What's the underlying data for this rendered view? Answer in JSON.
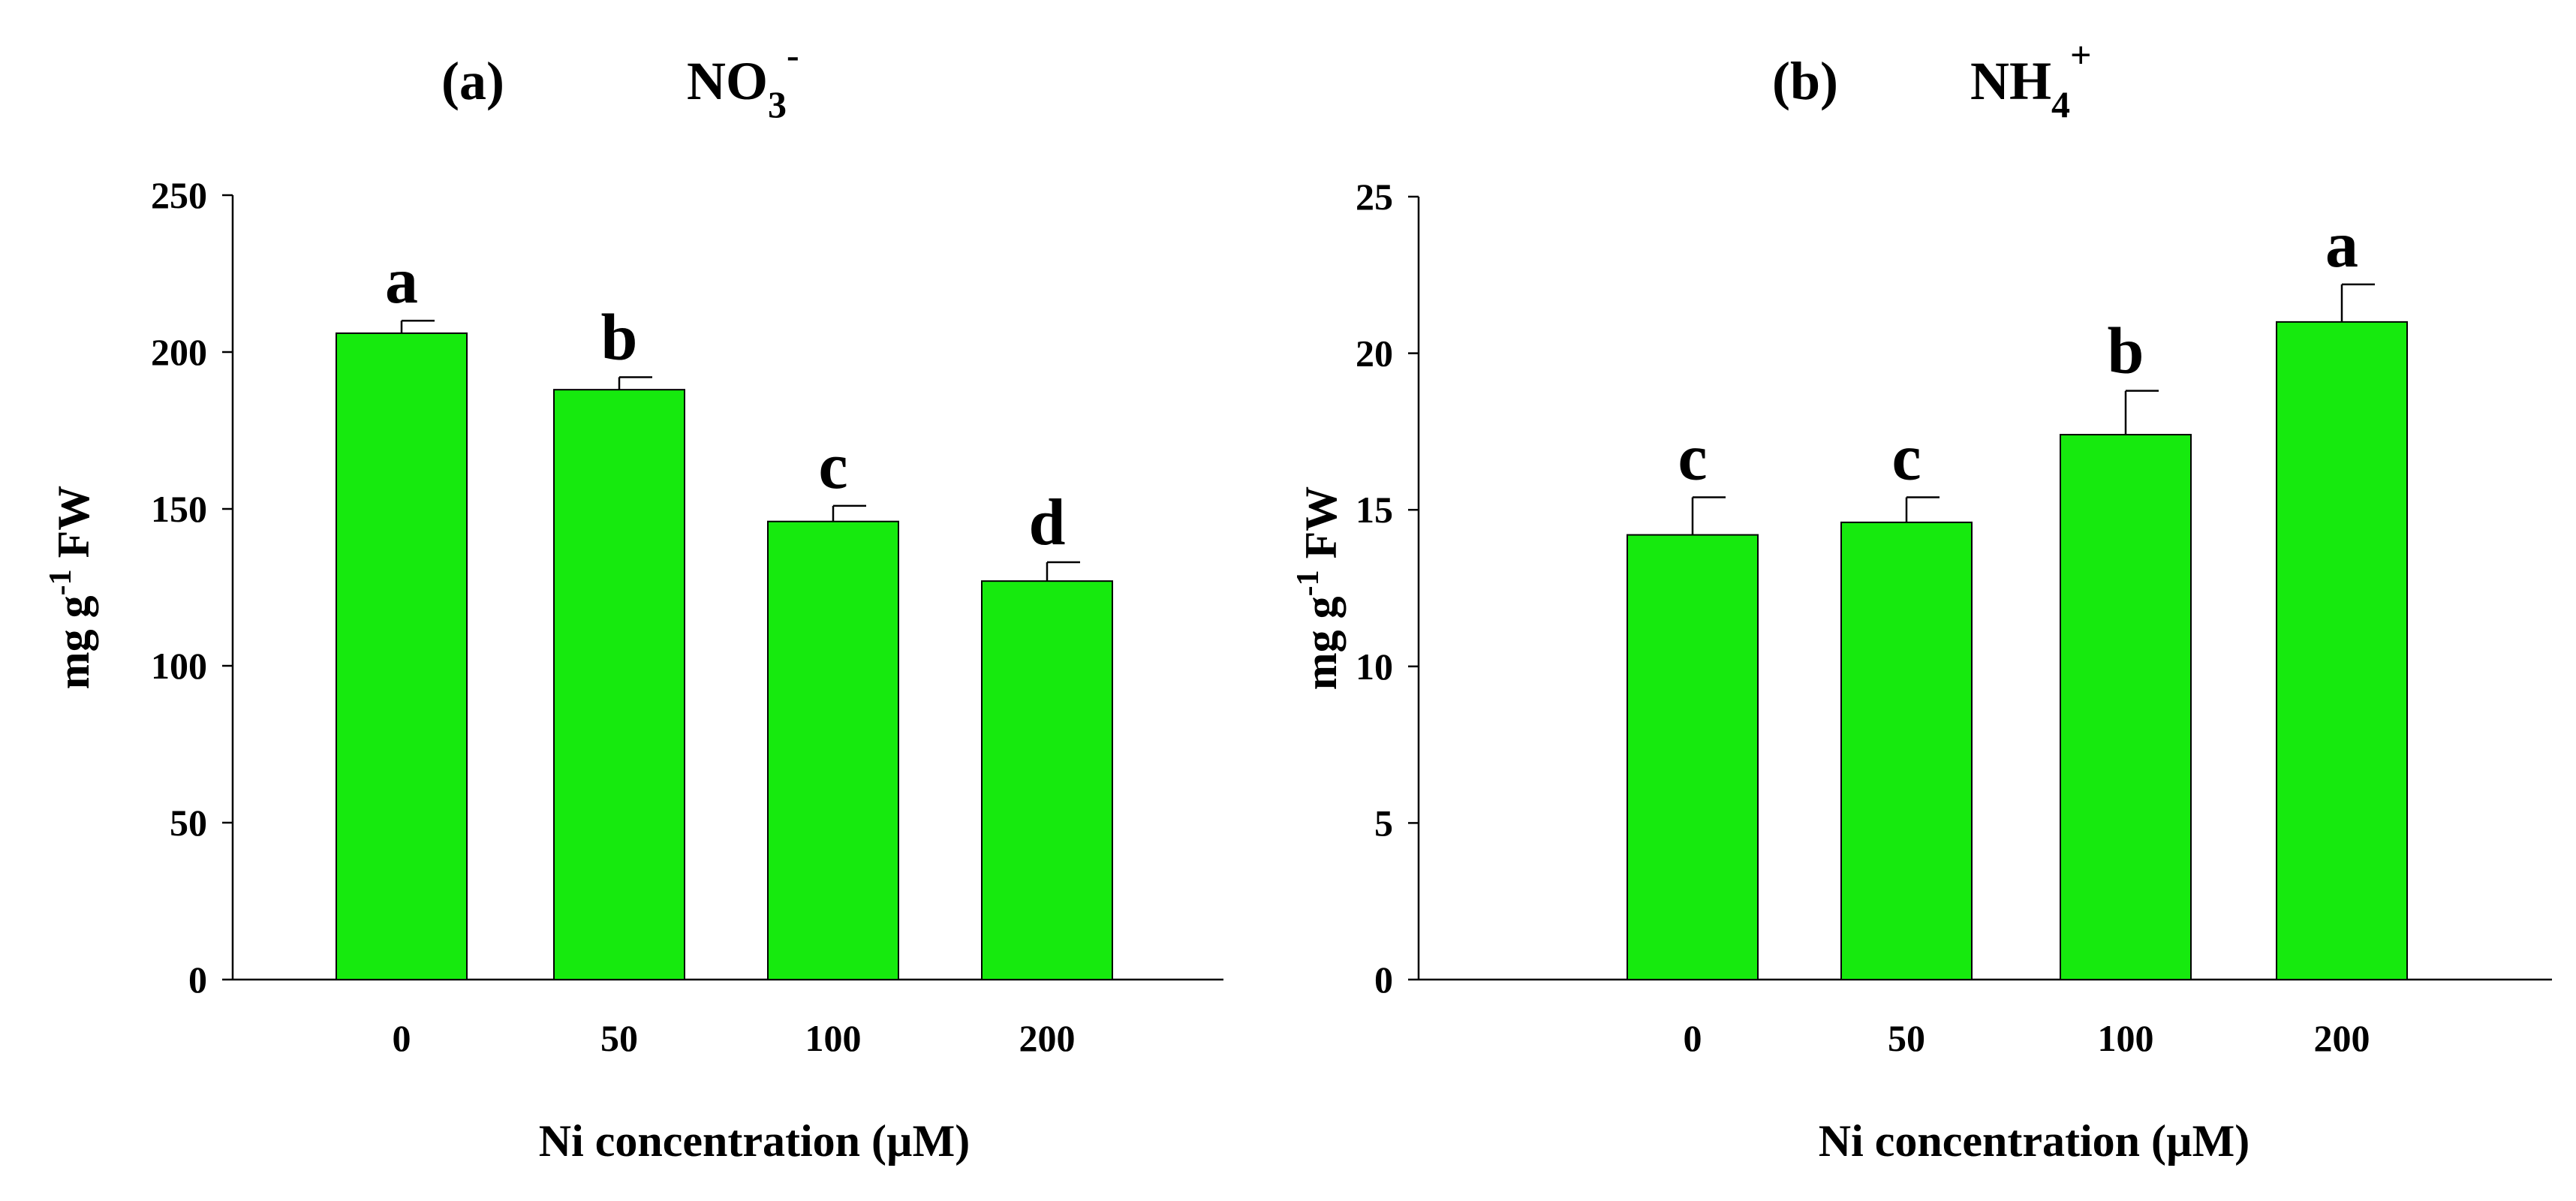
{
  "chart_data": [
    {
      "type": "bar",
      "panel_label": "(a)",
      "title_base": "NO",
      "title_sub": "3",
      "title_sup": "-",
      "categories": [
        "0",
        "50",
        "100",
        "200"
      ],
      "values": [
        206,
        188,
        146,
        127
      ],
      "errors": [
        4,
        4,
        5,
        6
      ],
      "letters": [
        "a",
        "b",
        "c",
        "d"
      ],
      "xlabel": "Ni concentration (µM)",
      "ylabel_base": "mg g",
      "ylabel_sup": "-1",
      "ylabel_tail": " FW",
      "ylim": [
        0,
        250
      ],
      "yticks": [
        0,
        50,
        100,
        150,
        200,
        250
      ],
      "bar_color": "#16ea0e"
    },
    {
      "type": "bar",
      "panel_label": "(b)",
      "title_base": "NH",
      "title_sub": "4",
      "title_sup": "+",
      "categories": [
        "0",
        "50",
        "100",
        "200"
      ],
      "values": [
        14.2,
        14.6,
        17.4,
        21.0
      ],
      "errors": [
        1.2,
        0.8,
        1.4,
        1.2
      ],
      "letters": [
        "c",
        "c",
        "b",
        "a"
      ],
      "xlabel": "Ni concentration (µM)",
      "ylabel_base": "mg g",
      "ylabel_sup": "-1",
      "ylabel_tail": " FW",
      "ylim": [
        0,
        25
      ],
      "yticks": [
        0,
        5,
        10,
        15,
        20,
        25
      ],
      "bar_color": "#16ea0e"
    }
  ]
}
